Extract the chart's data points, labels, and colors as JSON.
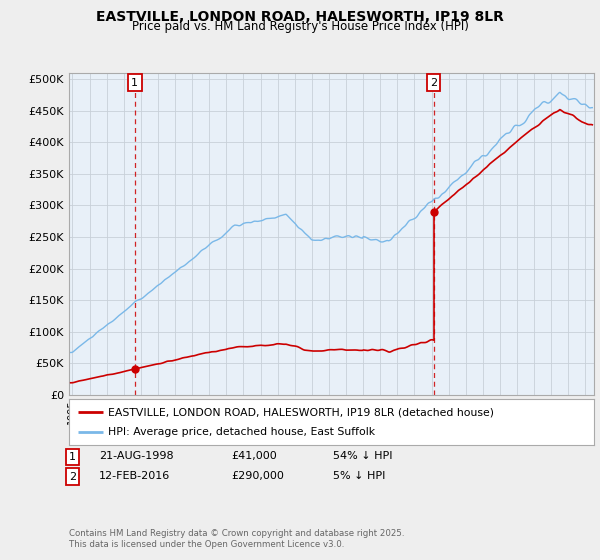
{
  "title": "EASTVILLE, LONDON ROAD, HALESWORTH, IP19 8LR",
  "subtitle": "Price paid vs. HM Land Registry's House Price Index (HPI)",
  "ylabel_ticks": [
    "£0",
    "£50K",
    "£100K",
    "£150K",
    "£200K",
    "£250K",
    "£300K",
    "£350K",
    "£400K",
    "£450K",
    "£500K"
  ],
  "ytick_values": [
    0,
    50000,
    100000,
    150000,
    200000,
    250000,
    300000,
    350000,
    400000,
    450000,
    500000
  ],
  "ylim": [
    0,
    510000
  ],
  "xlim_start": 1994.8,
  "xlim_end": 2025.5,
  "hpi_color": "#7ab8e8",
  "price_color": "#cc0000",
  "sale1_x": 1998.64,
  "sale1_y": 41000,
  "sale2_x": 2016.12,
  "sale2_y": 290000,
  "legend_line1": "EASTVILLE, LONDON ROAD, HALESWORTH, IP19 8LR (detached house)",
  "legend_line2": "HPI: Average price, detached house, East Suffolk",
  "copyright": "Contains HM Land Registry data © Crown copyright and database right 2025.\nThis data is licensed under the Open Government Licence v3.0.",
  "background_color": "#eeeeee",
  "plot_bg_color": "#e8f0f8"
}
